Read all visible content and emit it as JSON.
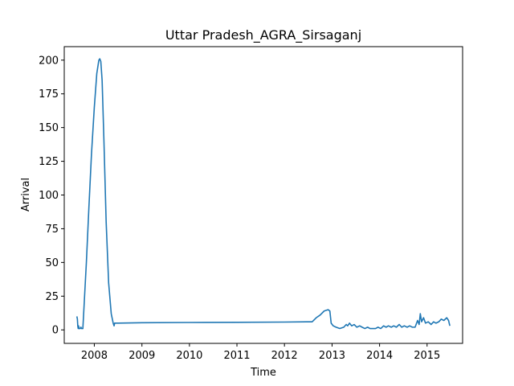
{
  "chart_data": {
    "type": "line",
    "title": "Uttar Pradesh_AGRA_Sirsaganj",
    "xlabel": "Time",
    "ylabel": "Arrival",
    "xlim": [
      "2007-05-15",
      "2015-10-01"
    ],
    "ylim": [
      -10,
      210
    ],
    "xticks": [
      "2008",
      "2009",
      "2010",
      "2011",
      "2012",
      "2013",
      "2014",
      "2015"
    ],
    "yticks": [
      0,
      25,
      50,
      75,
      100,
      125,
      150,
      175,
      200
    ],
    "grid": false,
    "legend": "none",
    "series": [
      {
        "color": "#1f77b4",
        "points": [
          [
            "2007-08-20",
            10
          ],
          [
            "2007-08-24",
            8
          ],
          [
            "2007-08-27",
            3
          ],
          [
            "2007-08-30",
            1
          ],
          [
            "2007-09-02",
            3
          ],
          [
            "2007-09-06",
            1
          ],
          [
            "2007-09-10",
            1
          ],
          [
            "2007-09-15",
            1
          ],
          [
            "2007-09-20",
            2
          ],
          [
            "2007-09-25",
            1
          ],
          [
            "2007-10-05",
            1
          ],
          [
            "2007-11-01",
            50
          ],
          [
            "2007-11-20",
            90
          ],
          [
            "2007-12-10",
            130
          ],
          [
            "2008-01-01",
            165
          ],
          [
            "2008-01-20",
            190
          ],
          [
            "2008-02-05",
            200
          ],
          [
            "2008-02-12",
            201
          ],
          [
            "2008-02-20",
            199
          ],
          [
            "2008-03-01",
            185
          ],
          [
            "2008-03-15",
            140
          ],
          [
            "2008-04-01",
            80
          ],
          [
            "2008-04-20",
            35
          ],
          [
            "2008-05-10",
            12
          ],
          [
            "2008-05-25",
            5
          ],
          [
            "2008-06-01",
            3
          ],
          [
            "2008-06-05",
            5
          ],
          [
            "2008-07-01",
            5
          ],
          [
            "2009-01-01",
            5.3
          ],
          [
            "2010-01-01",
            5.5
          ],
          [
            "2011-01-01",
            5.6
          ],
          [
            "2012-01-01",
            5.8
          ],
          [
            "2012-08-01",
            6
          ],
          [
            "2012-09-01",
            9
          ],
          [
            "2012-10-01",
            11
          ],
          [
            "2012-11-01",
            14
          ],
          [
            "2012-12-01",
            15
          ],
          [
            "2012-12-15",
            14
          ],
          [
            "2012-12-25",
            5
          ],
          [
            "2013-01-10",
            3
          ],
          [
            "2013-02-01",
            2
          ],
          [
            "2013-03-01",
            1
          ],
          [
            "2013-04-01",
            2
          ],
          [
            "2013-04-20",
            4
          ],
          [
            "2013-05-01",
            3
          ],
          [
            "2013-05-15",
            5
          ],
          [
            "2013-06-01",
            3
          ],
          [
            "2013-06-20",
            4
          ],
          [
            "2013-07-10",
            2
          ],
          [
            "2013-08-01",
            3
          ],
          [
            "2013-08-20",
            2
          ],
          [
            "2013-09-10",
            1
          ],
          [
            "2013-10-01",
            2
          ],
          [
            "2013-10-20",
            1
          ],
          [
            "2013-11-10",
            1
          ],
          [
            "2013-12-01",
            1
          ],
          [
            "2013-12-20",
            2
          ],
          [
            "2014-01-10",
            1
          ],
          [
            "2014-02-01",
            3
          ],
          [
            "2014-02-20",
            2
          ],
          [
            "2014-03-10",
            3
          ],
          [
            "2014-04-01",
            2
          ],
          [
            "2014-04-20",
            3
          ],
          [
            "2014-05-10",
            2
          ],
          [
            "2014-06-01",
            4
          ],
          [
            "2014-06-20",
            2
          ],
          [
            "2014-07-10",
            3
          ],
          [
            "2014-08-01",
            2
          ],
          [
            "2014-08-20",
            3
          ],
          [
            "2014-09-10",
            2
          ],
          [
            "2014-10-01",
            2
          ],
          [
            "2014-10-20",
            7
          ],
          [
            "2014-11-01",
            4
          ],
          [
            "2014-11-10",
            12
          ],
          [
            "2014-11-20",
            6
          ],
          [
            "2014-12-05",
            9
          ],
          [
            "2014-12-20",
            5
          ],
          [
            "2015-01-10",
            6
          ],
          [
            "2015-02-01",
            4
          ],
          [
            "2015-02-20",
            6
          ],
          [
            "2015-03-10",
            5
          ],
          [
            "2015-04-01",
            6
          ],
          [
            "2015-04-20",
            8
          ],
          [
            "2015-05-10",
            7
          ],
          [
            "2015-06-01",
            9
          ],
          [
            "2015-06-15",
            7
          ],
          [
            "2015-06-25",
            3
          ]
        ]
      }
    ]
  }
}
